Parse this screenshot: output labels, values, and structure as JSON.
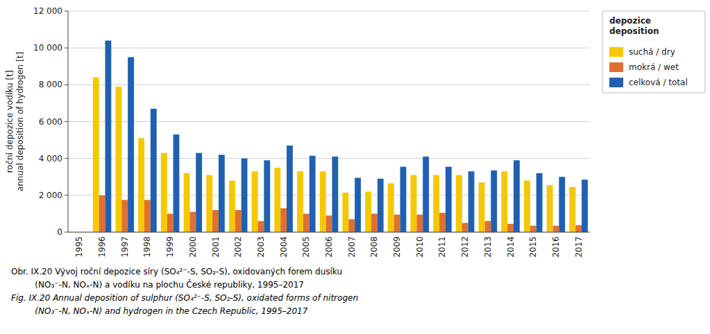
{
  "chart_data": {
    "type": "bar",
    "categories": [
      "1995",
      "1996",
      "1997",
      "1998",
      "1999",
      "2000",
      "2001",
      "2002",
      "2003",
      "2004",
      "2005",
      "2006",
      "2007",
      "2008",
      "2009",
      "2010",
      "2011",
      "2012",
      "2013",
      "2014",
      "2015",
      "2016",
      "2017"
    ],
    "series": [
      {
        "name": "suchá / dry",
        "color": "#F5C800",
        "values": [
          0,
          8400,
          7900,
          5100,
          4300,
          3200,
          3100,
          2800,
          3300,
          3500,
          3300,
          3300,
          2150,
          2200,
          2650,
          3100,
          3100,
          3100,
          2700,
          3300,
          2800,
          2550,
          2450
        ]
      },
      {
        "name": "mokrá / wet",
        "color": "#E07030",
        "values": [
          0,
          2000,
          1750,
          1750,
          1000,
          1100,
          1200,
          1200,
          600,
          1300,
          1000,
          900,
          700,
          1000,
          950,
          950,
          1050,
          500,
          600,
          450,
          350,
          350,
          380
        ]
      },
      {
        "name": "celková / total",
        "color": "#2060B0",
        "values": [
          0,
          10400,
          9500,
          6700,
          5300,
          4300,
          4200,
          4000,
          3900,
          4700,
          4150,
          4100,
          2950,
          2900,
          3550,
          4100,
          3550,
          3300,
          3350,
          3900,
          3200,
          3000,
          2850
        ]
      }
    ],
    "y_label": "roční depozice vodíku [t]\nannual deposition of hydrogen [t]",
    "legend_title": "depozice\ndeposition",
    "caption": [
      "Obr. IX.20 Vývoj roční depozice síry (SO₄²⁻-S, SO₂-S), oxidovaných forem dusíku",
      "         (NO₃⁻-N, NOₓ-N) a vodíku na plochu České republiky, 1995–2017",
      "Fig. IX.20 Annual deposition of sulphur (SO₄²⁻-S, SO₂-S), oxidated forms of nitrogen",
      "         (NO₃⁻-N, NOₓ-N) and hydrogen in the Czech Republic, 1995–2017"
    ],
    "ylim": [
      0,
      12000
    ],
    "yticks": [
      0,
      {
        "value": 2000,
        "label": "2 000"
      },
      {
        "value": 4000,
        "label": "4 000"
      },
      {
        "value": 6000,
        "label": "6 000"
      },
      {
        "value": 8000,
        "label": "8 000"
      },
      {
        "value": 10000,
        "label": "10 000"
      },
      {
        "value": 12000,
        "label": "12 000"
      }
    ],
    "grid": true,
    "legend": "right"
  }
}
